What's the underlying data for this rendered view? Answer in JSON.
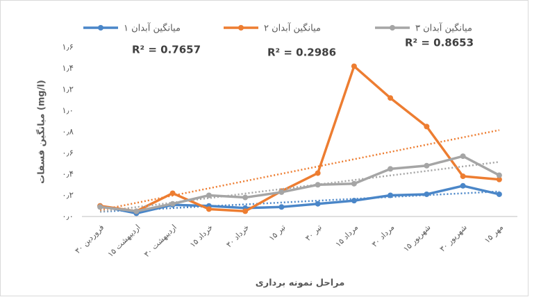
{
  "chart_data": {
    "type": "line",
    "ylabel": "میانگین فسفات (mg/l)",
    "xlabel": "مراحل نمونه برداری",
    "categories": [
      "۳۰ فروردین",
      "۱۵ اردیبهشت",
      "۳۰ اردیبهشت",
      "۱۵ خرداد",
      "۳۰ خرداد",
      "۱۵ تیر",
      "۳۰ تیر",
      "۱۵ مرداد",
      "۳۰ مرداد",
      "۱۵ شهریور",
      "۳۰ شهریور",
      "۱۵ مهر"
    ],
    "series": [
      {
        "name": "میانگین آبدان ۱",
        "color": "#4a86c8",
        "values": [
          0.1,
          0.03,
          0.11,
          0.1,
          0.08,
          0.09,
          0.12,
          0.15,
          0.2,
          0.21,
          0.29,
          0.21
        ]
      },
      {
        "name": "میانگین آبدان ۲",
        "color": "#ed7d31",
        "values": [
          0.1,
          0.05,
          0.22,
          0.07,
          0.05,
          0.24,
          0.41,
          1.42,
          1.12,
          0.85,
          0.38,
          0.35
        ]
      },
      {
        "name": "میانگین آبدان ۳",
        "color": "#a5a5a5",
        "values": [
          0.09,
          0.05,
          0.12,
          0.2,
          0.18,
          0.23,
          0.3,
          0.31,
          0.45,
          0.48,
          0.57,
          0.39
        ]
      }
    ],
    "annotations": [
      "R² = 0.7657",
      "R² = 0.2986",
      "R² = 0.8653"
    ],
    "trendline": true,
    "ylim": [
      0,
      1.6
    ],
    "yticks": [
      {
        "value": 0,
        "label": "۰٫۰"
      },
      {
        "value": 0.2,
        "label": "۰٫۲"
      },
      {
        "value": 0.4,
        "label": "۰٫۴"
      },
      {
        "value": 0.6,
        "label": "۰٫۶"
      },
      {
        "value": 0.8,
        "label": "۰٫۸"
      },
      {
        "value": 1.0,
        "label": "۱٫۰"
      },
      {
        "value": 1.2,
        "label": "۱٫۲"
      },
      {
        "value": 1.4,
        "label": "۱٫۴"
      },
      {
        "value": 1.6,
        "label": "۱٫۶"
      }
    ],
    "grid": false,
    "legend": "top"
  }
}
